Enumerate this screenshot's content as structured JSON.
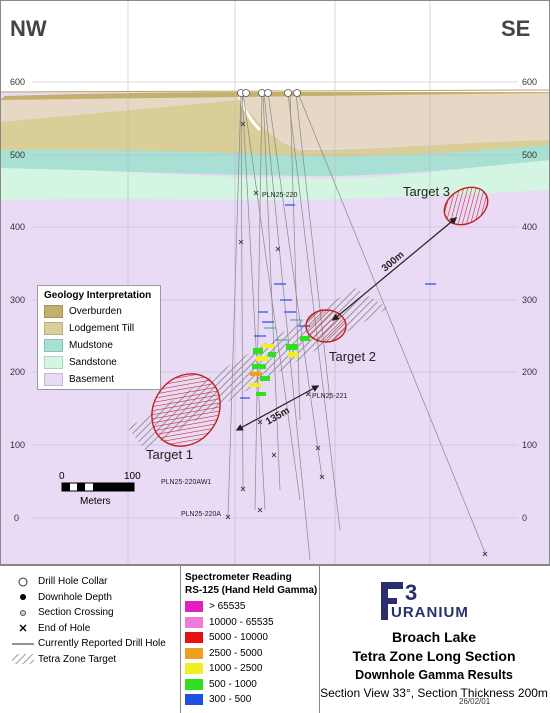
{
  "map": {
    "direction_left": "NW",
    "direction_right": "SE",
    "elevation_ticks": [
      "600",
      "500",
      "400",
      "300",
      "200",
      "100",
      "0"
    ],
    "labels": {
      "target1": "Target 1",
      "target2": "Target 2",
      "target3": "Target 3",
      "dist_300": "300m",
      "dist_135": "135m"
    },
    "holes": {
      "h220": "PLN25-220",
      "h221": "PLN25-221",
      "h220aw1": "PLN25-220AW1",
      "h220a": "PLN25-220A"
    },
    "scale": {
      "min": "0",
      "max": "100",
      "unit": "Meters"
    }
  },
  "geology_legend": {
    "title": "Geology Interpretation",
    "items": [
      {
        "label": "Overburden",
        "color": "#c4b06d"
      },
      {
        "label": "Lodgement Till",
        "color": "#d9cd98"
      },
      {
        "label": "Mudstone",
        "color": "#a8e0d4"
      },
      {
        "label": "Sandstone",
        "color": "#d4f5e2"
      },
      {
        "label": "Basement",
        "color": "#e9daf5"
      }
    ]
  },
  "symbol_legend": {
    "items": [
      {
        "label": "Drill Hole Collar",
        "icon": "hollow-circle-icon"
      },
      {
        "label": "Downhole Depth",
        "icon": "filled-dot-icon"
      },
      {
        "label": "Section Crossing",
        "icon": "small-circle-icon"
      },
      {
        "label": "End of Hole",
        "icon": "x-mark-icon"
      },
      {
        "label": "Currently Reported Drill Hole",
        "icon": "line-icon"
      },
      {
        "label": "Tetra Zone Target",
        "icon": "hatch-icon"
      }
    ]
  },
  "spectrometer": {
    "title1": "Spectrometer Reading",
    "title2": "RS-125 (Hand Held Gamma)",
    "items": [
      {
        "label": "> 65535",
        "color": "#e020c0"
      },
      {
        "label": "10000 - 65535",
        "color": "#f07ad8"
      },
      {
        "label": "5000 - 10000",
        "color": "#e81010"
      },
      {
        "label": "2500 - 5000",
        "color": "#f0a020"
      },
      {
        "label": "1000 - 2500",
        "color": "#f0f020"
      },
      {
        "label": "500 - 1000",
        "color": "#30e020"
      },
      {
        "label": "300 - 500",
        "color": "#2050e0"
      }
    ]
  },
  "brand": {
    "logo_word": "URANIUM",
    "title1": "Broach Lake",
    "title2": "Tetra Zone Long Section",
    "subtitle": "Downhole Gamma Results",
    "section": "Section View 33°, Section Thickness 200m",
    "date": "26/02/01"
  }
}
